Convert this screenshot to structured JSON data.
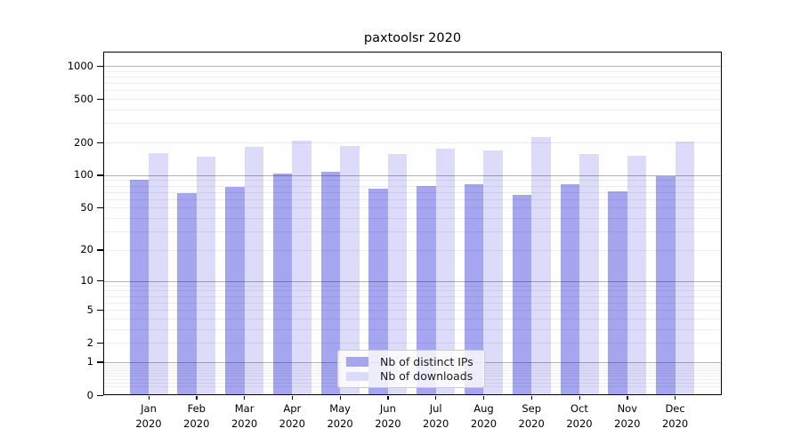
{
  "chart_data": {
    "type": "bar",
    "title": "paxtoolsr 2020",
    "year_label": "2020",
    "categories": [
      "Jan",
      "Feb",
      "Mar",
      "Apr",
      "May",
      "Jun",
      "Jul",
      "Aug",
      "Sep",
      "Oct",
      "Nov",
      "Dec"
    ],
    "series": [
      {
        "name": "Nb of distinct IPs",
        "color": "#a5a5f0",
        "values": [
          91,
          68,
          78,
          103,
          108,
          75,
          80,
          82,
          66,
          82,
          71,
          98
        ]
      },
      {
        "name": "Nb of downloads",
        "color": "#dcdcfa",
        "values": [
          160,
          147,
          182,
          209,
          185,
          156,
          175,
          168,
          225,
          158,
          152,
          202
        ]
      }
    ],
    "yscale": "log1p",
    "yticks": [
      0,
      1,
      2,
      5,
      10,
      20,
      50,
      100,
      200,
      500,
      1000
    ],
    "major_gridlines": [
      1,
      10,
      100,
      1000
    ],
    "ylim": [
      0,
      1340
    ],
    "xlabel": "",
    "ylabel": "",
    "grid": true,
    "legend_position": "lower center"
  }
}
